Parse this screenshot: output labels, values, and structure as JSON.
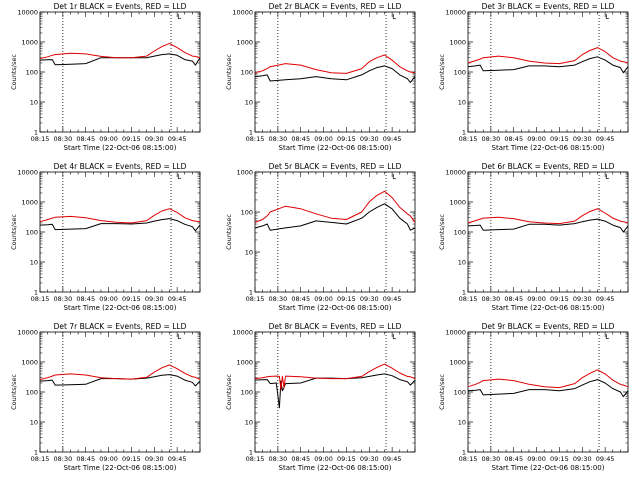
{
  "figure": {
    "background": "#ffffff",
    "axis_color": "#000000",
    "grid": false
  },
  "shared": {
    "ylabel": "Counts/sec",
    "xlabel": "Start Time (22-Oct-06 08:15:00)",
    "x_tick_labels": [
      "08:15",
      "08:30",
      "08:45",
      "09:00",
      "09:15",
      "09:30",
      "09:45"
    ],
    "y_tick_labels": [
      "1",
      "10",
      "100",
      "1000",
      "10000"
    ],
    "legend_mark": "L"
  },
  "chart_data": [
    {
      "type": "line",
      "title": "Det 1r BLACK = Events, RED = LLD",
      "xlabel": "Start Time (22-Oct-06 08:15:00)",
      "ylabel": "Counts/sec",
      "x_unit": "minutes after 08:15",
      "xlim": [
        0,
        105
      ],
      "ylim": [
        1,
        10000
      ],
      "y_scale": "log",
      "vlines_min": [
        15,
        86
      ],
      "x": [
        0,
        5,
        8,
        10,
        20,
        30,
        40,
        50,
        60,
        70,
        75,
        80,
        85,
        90,
        95,
        100,
        102,
        105
      ],
      "series": [
        {
          "name": "BLACK = Events",
          "color": "#000000",
          "values": [
            250,
            255,
            260,
            175,
            180,
            190,
            300,
            300,
            300,
            300,
            340,
            380,
            400,
            360,
            260,
            230,
            170,
            300
          ]
        },
        {
          "name": "RED = LLD",
          "color": "#e00000",
          "values": [
            280,
            320,
            360,
            380,
            420,
            400,
            330,
            300,
            300,
            340,
            500,
            700,
            900,
            650,
            450,
            340,
            330,
            300
          ]
        }
      ]
    },
    {
      "type": "line",
      "title": "Det 2r BLACK = Events, RED = LLD",
      "xlabel": "Start Time (22-Oct-06 08:15:00)",
      "ylabel": "Counts/sec",
      "x_unit": "minutes after 08:15",
      "xlim": [
        0,
        105
      ],
      "ylim": [
        1,
        10000
      ],
      "y_scale": "log",
      "vlines_min": [
        15,
        86
      ],
      "x": [
        0,
        5,
        8,
        10,
        20,
        30,
        40,
        50,
        60,
        70,
        75,
        80,
        85,
        90,
        95,
        100,
        102,
        105
      ],
      "series": [
        {
          "name": "BLACK = Events",
          "color": "#000000",
          "values": [
            70,
            75,
            80,
            50,
            55,
            60,
            70,
            60,
            55,
            80,
            110,
            140,
            160,
            130,
            80,
            60,
            45,
            70
          ]
        },
        {
          "name": "RED = LLD",
          "color": "#e00000",
          "values": [
            95,
            110,
            130,
            150,
            190,
            170,
            120,
            95,
            90,
            130,
            220,
            300,
            370,
            250,
            150,
            110,
            100,
            95
          ]
        }
      ]
    },
    {
      "type": "line",
      "title": "Det 3r BLACK = Events, RED = LLD",
      "xlabel": "Start Time (22-Oct-06 08:15:00)",
      "ylabel": "Counts/sec",
      "x_unit": "minutes after 08:15",
      "xlim": [
        0,
        105
      ],
      "ylim": [
        1,
        10000
      ],
      "y_scale": "log",
      "vlines_min": [
        15,
        86
      ],
      "x": [
        0,
        5,
        8,
        10,
        20,
        30,
        40,
        50,
        60,
        70,
        75,
        80,
        85,
        90,
        95,
        100,
        102,
        105
      ],
      "series": [
        {
          "name": "BLACK = Events",
          "color": "#000000",
          "values": [
            150,
            160,
            170,
            110,
            115,
            120,
            160,
            160,
            150,
            170,
            220,
            280,
            320,
            250,
            170,
            140,
            95,
            150
          ]
        },
        {
          "name": "RED = LLD",
          "color": "#e00000",
          "values": [
            200,
            240,
            270,
            300,
            340,
            300,
            230,
            200,
            190,
            240,
            380,
            520,
            650,
            480,
            300,
            230,
            220,
            200
          ]
        }
      ]
    },
    {
      "type": "line",
      "title": "Det 4r BLACK = Events, RED = LLD",
      "xlabel": "Start Time (22-Oct-06 08:15:00)",
      "ylabel": "Counts/sec",
      "x_unit": "minutes after 08:15",
      "xlim": [
        0,
        105
      ],
      "ylim": [
        1,
        10000
      ],
      "y_scale": "log",
      "vlines_min": [
        15,
        86
      ],
      "x": [
        0,
        5,
        8,
        10,
        20,
        30,
        40,
        50,
        60,
        70,
        75,
        80,
        85,
        90,
        95,
        100,
        102,
        105
      ],
      "series": [
        {
          "name": "BLACK = Events",
          "color": "#000000",
          "values": [
            170,
            175,
            180,
            120,
            125,
            130,
            190,
            190,
            185,
            200,
            230,
            260,
            280,
            240,
            180,
            150,
            110,
            170
          ]
        },
        {
          "name": "RED = LLD",
          "color": "#e00000",
          "values": [
            220,
            260,
            290,
            310,
            330,
            300,
            240,
            210,
            200,
            240,
            360,
            500,
            600,
            450,
            300,
            240,
            230,
            220
          ]
        }
      ]
    },
    {
      "type": "line",
      "title": "Det 5r BLACK = Events, RED = LLD",
      "xlabel": "Start Time (22-Oct-06 08:15:00)",
      "ylabel": "Counts/sec",
      "x_unit": "minutes after 08:15",
      "xlim": [
        0,
        105
      ],
      "ylim": [
        1,
        1000
      ],
      "y_scale": "log",
      "vlines_min": [
        15,
        86
      ],
      "x": [
        0,
        5,
        8,
        10,
        20,
        30,
        40,
        50,
        60,
        70,
        75,
        80,
        85,
        90,
        95,
        100,
        102,
        105
      ],
      "series": [
        {
          "name": "BLACK = Events",
          "color": "#000000",
          "values": [
            40,
            45,
            50,
            35,
            40,
            45,
            60,
            55,
            50,
            70,
            100,
            130,
            160,
            120,
            70,
            50,
            35,
            40
          ]
        },
        {
          "name": "RED = LLD",
          "color": "#e00000",
          "values": [
            55,
            65,
            80,
            100,
            140,
            120,
            90,
            70,
            65,
            100,
            180,
            260,
            330,
            230,
            130,
            90,
            80,
            55
          ]
        }
      ]
    },
    {
      "type": "line",
      "title": "Det 6r BLACK = Events, RED = LLD",
      "xlabel": "Start Time (22-Oct-06 08:15:00)",
      "ylabel": "Counts/sec",
      "x_unit": "minutes after 08:15",
      "xlim": [
        0,
        105
      ],
      "ylim": [
        1,
        10000
      ],
      "y_scale": "log",
      "vlines_min": [
        15,
        86
      ],
      "x": [
        0,
        5,
        8,
        10,
        20,
        30,
        40,
        50,
        60,
        70,
        75,
        80,
        85,
        90,
        95,
        100,
        102,
        105
      ],
      "series": [
        {
          "name": "BLACK = Events",
          "color": "#000000",
          "values": [
            160,
            165,
            170,
            115,
            120,
            125,
            180,
            180,
            170,
            190,
            220,
            250,
            270,
            230,
            170,
            140,
            100,
            160
          ]
        },
        {
          "name": "RED = LLD",
          "color": "#e00000",
          "values": [
            200,
            240,
            270,
            290,
            310,
            280,
            220,
            200,
            190,
            230,
            350,
            480,
            600,
            430,
            290,
            230,
            220,
            200
          ]
        }
      ]
    },
    {
      "type": "line",
      "title": "Det 7r BLACK = Events, RED = LLD",
      "xlabel": "Start Time (22-Oct-06 08:15:00)",
      "ylabel": "Counts/sec",
      "x_unit": "minutes after 08:15",
      "xlim": [
        0,
        105
      ],
      "ylim": [
        1,
        10000
      ],
      "y_scale": "log",
      "vlines_min": [
        15,
        86
      ],
      "x": [
        0,
        5,
        8,
        10,
        20,
        30,
        40,
        50,
        60,
        70,
        75,
        80,
        85,
        90,
        95,
        100,
        102,
        105
      ],
      "series": [
        {
          "name": "BLACK = Events",
          "color": "#000000",
          "values": [
            230,
            240,
            250,
            170,
            175,
            180,
            280,
            280,
            270,
            290,
            320,
            360,
            380,
            340,
            250,
            210,
            160,
            230
          ]
        },
        {
          "name": "RED = LLD",
          "color": "#e00000",
          "values": [
            260,
            300,
            340,
            370,
            400,
            370,
            300,
            280,
            270,
            310,
            460,
            640,
            800,
            600,
            420,
            320,
            310,
            260
          ]
        }
      ]
    },
    {
      "type": "line",
      "title": "Det 8r BLACK = Events, RED = LLD",
      "xlabel": "Start Time (22-Oct-06 08:15:00)",
      "ylabel": "Counts/sec",
      "x_unit": "minutes after 08:15",
      "xlim": [
        0,
        105
      ],
      "ylim": [
        1,
        10000
      ],
      "y_scale": "log",
      "vlines_min": [
        15,
        86
      ],
      "x": [
        0,
        5,
        8,
        10,
        14,
        16,
        17,
        18,
        19,
        20,
        30,
        40,
        50,
        60,
        70,
        75,
        80,
        85,
        90,
        95,
        100,
        102,
        105
      ],
      "series": [
        {
          "name": "BLACK = Events",
          "color": "#000000",
          "values": [
            250,
            255,
            260,
            190,
            200,
            30,
            230,
            110,
            140,
            190,
            200,
            290,
            290,
            280,
            300,
            330,
            370,
            400,
            350,
            260,
            220,
            170,
            250
          ]
        },
        {
          "name": "RED = LLD",
          "color": "#e00000",
          "values": [
            280,
            300,
            320,
            330,
            340,
            330,
            120,
            330,
            140,
            340,
            320,
            290,
            280,
            280,
            330,
            480,
            660,
            850,
            620,
            430,
            330,
            320,
            280
          ]
        }
      ]
    },
    {
      "type": "line",
      "title": "Det 9r BLACK = Events, RED = LLD",
      "xlabel": "Start Time (22-Oct-06 08:15:00)",
      "ylabel": "Counts/sec",
      "x_unit": "minutes after 08:15",
      "xlim": [
        0,
        105
      ],
      "ylim": [
        1,
        10000
      ],
      "y_scale": "log",
      "vlines_min": [
        15,
        86
      ],
      "x": [
        0,
        5,
        8,
        10,
        20,
        30,
        40,
        50,
        60,
        70,
        75,
        80,
        85,
        90,
        95,
        100,
        102,
        105
      ],
      "series": [
        {
          "name": "BLACK = Events",
          "color": "#000000",
          "values": [
            110,
            115,
            120,
            80,
            85,
            90,
            120,
            120,
            110,
            130,
            170,
            220,
            260,
            200,
            130,
            100,
            70,
            110
          ]
        },
        {
          "name": "RED = LLD",
          "color": "#e00000",
          "values": [
            150,
            180,
            210,
            240,
            270,
            240,
            180,
            150,
            140,
            190,
            300,
            420,
            550,
            400,
            250,
            180,
            170,
            150
          ]
        }
      ]
    }
  ]
}
